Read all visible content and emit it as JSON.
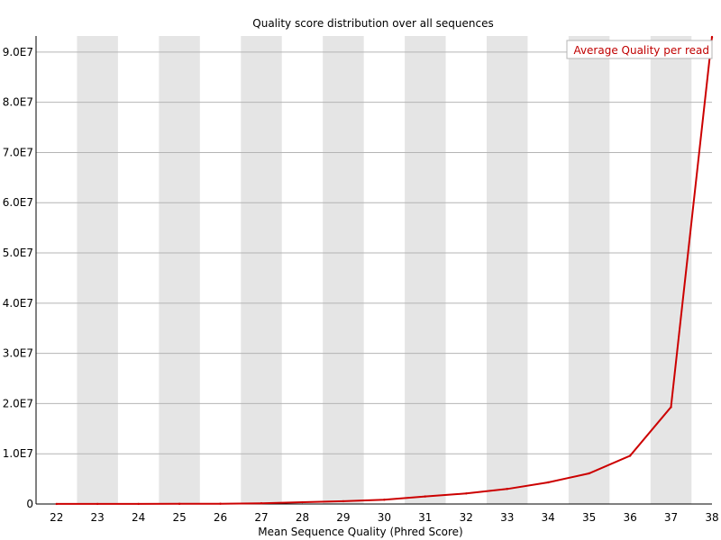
{
  "chart_data": {
    "type": "line",
    "title": "Quality score distribution over all sequences",
    "xlabel": "Mean Sequence Quality (Phred Score)",
    "ylabel": "",
    "categories": [
      "22",
      "23",
      "24",
      "25",
      "26",
      "27",
      "28",
      "29",
      "30",
      "31",
      "32",
      "33",
      "34",
      "35",
      "36",
      "37",
      "38"
    ],
    "series": [
      {
        "name": "Average Quality per read",
        "color": "#cc0000",
        "values": [
          10000,
          15000,
          20000,
          30000,
          60000,
          150000,
          350000,
          550000,
          850000,
          1500000,
          2100000,
          3000000,
          4300000,
          6100000,
          9600000,
          19300000,
          93000000
        ]
      }
    ],
    "yticks": [
      {
        "value": 0,
        "label": "0"
      },
      {
        "value": 10000000,
        "label": "1.0E7"
      },
      {
        "value": 20000000,
        "label": "2.0E7"
      },
      {
        "value": 30000000,
        "label": "3.0E7"
      },
      {
        "value": 40000000,
        "label": "4.0E7"
      },
      {
        "value": 50000000,
        "label": "5.0E7"
      },
      {
        "value": 60000000,
        "label": "6.0E7"
      },
      {
        "value": 70000000,
        "label": "7.0E7"
      },
      {
        "value": 80000000,
        "label": "8.0E7"
      },
      {
        "value": 90000000,
        "label": "9.0E7"
      }
    ],
    "ylim": [
      0,
      93200000
    ],
    "grid": true,
    "legend": "top-right",
    "band_color": "#e5e5e5",
    "grid_color": "#b4b4b4"
  }
}
